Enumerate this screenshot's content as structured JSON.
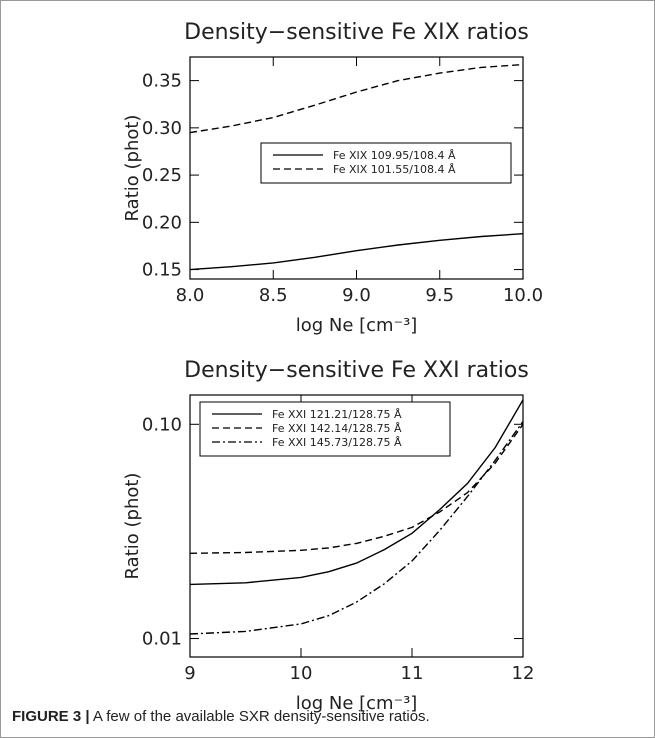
{
  "chart_data": [
    {
      "type": "line",
      "title": "Density−sensitive Fe XIX ratios",
      "x_label": "log Ne [cm⁻³]",
      "y_label": "Ratio (phot)",
      "x": [
        8.0,
        8.25,
        8.5,
        8.75,
        9.0,
        9.25,
        9.5,
        9.75,
        10.0
      ],
      "series": [
        {
          "name": "Fe XIX 109.95/108.4 Å",
          "color": "#000000",
          "dash": "solid",
          "values": [
            0.15,
            0.153,
            0.157,
            0.163,
            0.17,
            0.176,
            0.181,
            0.185,
            0.188
          ]
        },
        {
          "name": "Fe XIX 101.55/108.4 Å",
          "color": "#000000",
          "dash": "dashed",
          "values": [
            0.295,
            0.302,
            0.311,
            0.324,
            0.338,
            0.35,
            0.358,
            0.364,
            0.367
          ]
        }
      ],
      "xlim": [
        8.0,
        10.0
      ],
      "xticks": [
        {
          "value": 8,
          "label": "8.0"
        },
        8.5,
        {
          "value": 9,
          "label": "9.0"
        },
        9.5,
        {
          "value": 10,
          "label": "10.0"
        }
      ],
      "ylim": [
        0.14,
        0.375
      ],
      "yticks": [
        0.15,
        {
          "value": 0.2,
          "label": "0.20"
        },
        0.25,
        {
          "value": 0.3,
          "label": "0.30"
        },
        0.35
      ],
      "log_y": false,
      "legend": "center right"
    },
    {
      "type": "line",
      "title": "Density−sensitive Fe XXI ratios",
      "x_label": "log Ne [cm⁻³]",
      "y_label": "Ratio (phot)",
      "x": [
        9,
        9.5,
        10,
        10.25,
        10.5,
        10.75,
        11,
        11.25,
        11.5,
        11.75,
        12
      ],
      "series": [
        {
          "name": "Fe XXI 121.21/128.75 Å",
          "color": "#000000",
          "dash": "solid",
          "values": [
            0.0179,
            0.0182,
            0.0193,
            0.0205,
            0.0225,
            0.026,
            0.031,
            0.04,
            0.053,
            0.078,
            0.13
          ]
        },
        {
          "name": "Fe XXI 142.14/128.75 Å",
          "color": "#000000",
          "dash": "dashed",
          "values": [
            0.025,
            0.0252,
            0.0258,
            0.0265,
            0.0278,
            0.03,
            0.033,
            0.039,
            0.048,
            0.066,
            0.1
          ]
        },
        {
          "name": "Fe XXI 145.73/128.75 Å",
          "color": "#000000",
          "dash": "dashdot",
          "values": [
            0.0105,
            0.0108,
            0.0117,
            0.0128,
            0.0148,
            0.018,
            0.023,
            0.032,
            0.046,
            0.068,
            0.103
          ]
        }
      ],
      "xlim": [
        9,
        12
      ],
      "xticks": [
        9,
        10,
        11,
        12
      ],
      "ylim": [
        0.0082,
        0.137
      ],
      "yticks": [
        0.01,
        {
          "value": 0.1,
          "label": "0.10"
        }
      ],
      "log_y": true,
      "legend": "upper left"
    }
  ],
  "caption": {
    "label": "FIGURE 3 |",
    "text": " A few of the available SXR density-sensitive ratios."
  }
}
